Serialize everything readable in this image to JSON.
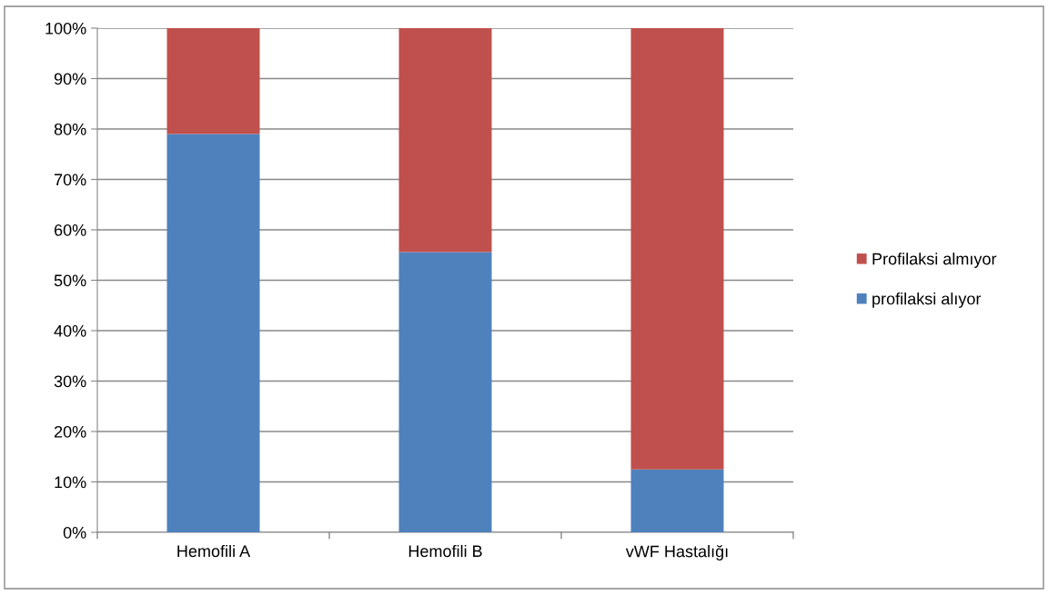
{
  "chart_data": {
    "type": "bar",
    "stacked": true,
    "categories": [
      "Hemofili A",
      "Hemofili B",
      "vWF Hastalığı"
    ],
    "series": [
      {
        "name": "profilaksi alıyor",
        "color": "#4f81bd",
        "values": [
          79,
          55.6,
          12.5
        ]
      },
      {
        "name": "Profilaksi almıyor",
        "color": "#c0504d",
        "values": [
          21,
          44.4,
          87.5
        ]
      }
    ],
    "ylim": [
      0,
      100
    ],
    "yticks": [
      {
        "value": 0,
        "label": "0%"
      },
      {
        "value": 10,
        "label": "10%"
      },
      {
        "value": 20,
        "label": "20%"
      },
      {
        "value": 30,
        "label": "30%"
      },
      {
        "value": 40,
        "label": "40%"
      },
      {
        "value": 50,
        "label": "50%"
      },
      {
        "value": 60,
        "label": "60%"
      },
      {
        "value": 70,
        "label": "70%"
      },
      {
        "value": 80,
        "label": "80%"
      },
      {
        "value": 90,
        "label": "90%"
      },
      {
        "value": 100,
        "label": "100%"
      }
    ],
    "grid": "y",
    "legend": "right"
  }
}
